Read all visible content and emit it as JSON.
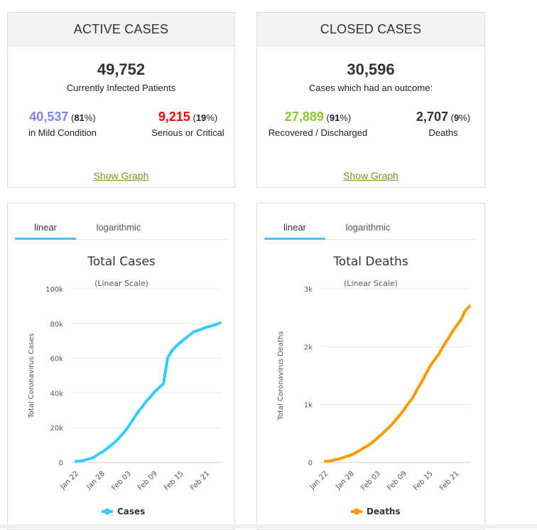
{
  "active": {
    "header": "ACTIVE CASES",
    "total": "49,752",
    "subtitle": "Currently Infected Patients",
    "mild_value": "40,537",
    "mild_pct": "81",
    "mild_label": "in Mild Condition",
    "serious_value": "9,215",
    "serious_pct": "19",
    "serious_label": "Serious or Critical",
    "show_graph": "Show Graph",
    "colors": {
      "mild": "#8080f0",
      "serious": "#ff0000"
    }
  },
  "closed": {
    "header": "CLOSED CASES",
    "total": "30,596",
    "subtitle": "Cases which had an outcome:",
    "recovered_value": "27,889",
    "recovered_pct": "91",
    "recovered_label": "Recovered / Discharged",
    "deaths_value": "2,707",
    "deaths_pct": "9",
    "deaths_label": "Deaths",
    "show_graph": "Show Graph",
    "colors": {
      "recovered": "#8ac831",
      "deaths": "#333333"
    }
  },
  "tabs": {
    "linear": "linear",
    "logarithmic": "logarithmic"
  },
  "pct_open": "(",
  "pct_close": "%)",
  "chart_data": [
    {
      "type": "line",
      "title": "Total Cases",
      "subtitle": "(Linear Scale)",
      "ylabel": "Total Coronavirus Cases",
      "ylim": [
        0,
        100000
      ],
      "yticks": [
        0,
        20000,
        40000,
        60000,
        80000,
        100000
      ],
      "ytick_labels": [
        "0",
        "20k",
        "40k",
        "60k",
        "80k",
        "100k"
      ],
      "xtick_labels": [
        "Jan 22",
        "Jan 28",
        "Feb 03",
        "Feb 09",
        "Feb 15",
        "Feb 21"
      ],
      "xtick_index": [
        0,
        6,
        12,
        18,
        24,
        30
      ],
      "grid": true,
      "legend": "bottom",
      "color": "#33ccff",
      "series": [
        {
          "name": "Cases",
          "values": [
            580,
            850,
            1300,
            2000,
            2800,
            4600,
            6000,
            7800,
            9800,
            11900,
            14500,
            17400,
            20600,
            24500,
            28300,
            31500,
            34900,
            37600,
            40600,
            43100,
            45200,
            60400,
            64500,
            67100,
            69300,
            71400,
            73400,
            75300,
            76100,
            77000,
            78000,
            78600,
            79400,
            80400
          ]
        }
      ]
    },
    {
      "type": "line",
      "title": "Total Deaths",
      "subtitle": "(Linear Scale)",
      "ylabel": "Total Coronavirus Deaths",
      "ylim": [
        0,
        3000
      ],
      "yticks": [
        0,
        1000,
        2000,
        3000
      ],
      "ytick_labels": [
        "0",
        "1k",
        "2k",
        "3k"
      ],
      "xtick_labels": [
        "Jan 22",
        "Jan 28",
        "Feb 03",
        "Feb 09",
        "Feb 15",
        "Feb 21"
      ],
      "xtick_index": [
        0,
        6,
        12,
        18,
        24,
        30
      ],
      "grid": true,
      "legend": "bottom",
      "color": "#ff9900",
      "series": [
        {
          "name": "Deaths",
          "values": [
            17,
            25,
            41,
            56,
            80,
            106,
            132,
            170,
            213,
            259,
            304,
            362,
            426,
            492,
            565,
            638,
            724,
            813,
            910,
            1018,
            1115,
            1261,
            1383,
            1526,
            1669,
            1775,
            1873,
            2009,
            2126,
            2247,
            2360,
            2460,
            2618,
            2699
          ]
        }
      ]
    }
  ]
}
